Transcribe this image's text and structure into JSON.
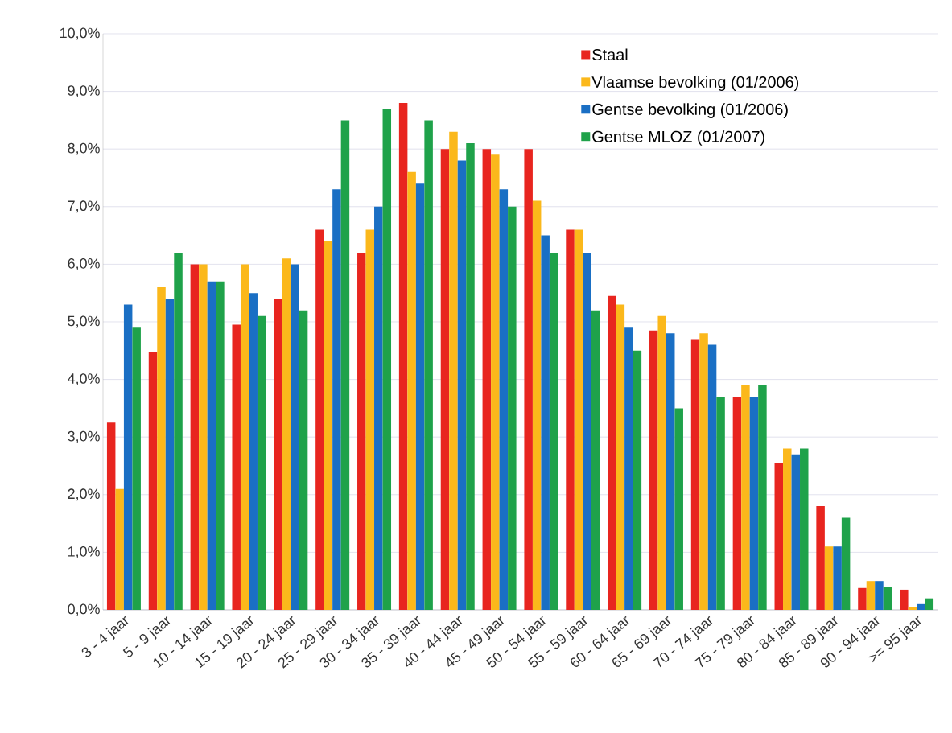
{
  "chart_data": {
    "type": "bar",
    "categories": [
      "3 - 4 jaar",
      "5 - 9 jaar",
      "10 - 14 jaar",
      "15 - 19 jaar",
      "20 - 24 jaar",
      "25 - 29 jaar",
      "30 - 34 jaar",
      "35 - 39 jaar",
      "40 - 44 jaar",
      "45 - 49 jaar",
      "50 - 54 jaar",
      "55 - 59 jaar",
      "60 - 64 jaar",
      "65 - 69 jaar",
      "70 - 74 jaar",
      "75 - 79 jaar",
      "80 - 84 jaar",
      "85 - 89 jaar",
      "90 - 94 jaar",
      ">= 95 jaar"
    ],
    "series": [
      {
        "name": "Staal",
        "color": "#e8251f",
        "values": [
          3.25,
          4.48,
          6.0,
          4.95,
          5.4,
          6.6,
          6.2,
          8.8,
          8.0,
          8.0,
          8.0,
          6.6,
          5.45,
          4.85,
          4.7,
          3.7,
          2.55,
          1.8,
          0.38,
          0.35
        ]
      },
      {
        "name": "Vlaamse bevolking (01/2006)",
        "color": "#fbb81b",
        "values": [
          2.1,
          5.6,
          6.0,
          6.0,
          6.1,
          6.4,
          6.6,
          7.6,
          8.3,
          7.9,
          7.1,
          6.6,
          5.3,
          5.1,
          4.8,
          3.9,
          2.8,
          1.1,
          0.5,
          0.05
        ]
      },
      {
        "name": "Gentse bevolking (01/2006)",
        "color": "#1a6fc4",
        "values": [
          5.3,
          5.4,
          5.7,
          5.5,
          6.0,
          7.3,
          7.0,
          7.4,
          7.8,
          7.3,
          6.5,
          6.2,
          4.9,
          4.8,
          4.6,
          3.7,
          2.7,
          1.1,
          0.5,
          0.1
        ]
      },
      {
        "name": "Gentse MLOZ (01/2007)",
        "color": "#1fa24a",
        "values": [
          4.9,
          6.2,
          5.7,
          5.1,
          5.2,
          8.5,
          8.7,
          8.5,
          8.1,
          7.0,
          6.2,
          5.2,
          4.5,
          3.5,
          3.7,
          3.9,
          2.8,
          1.6,
          0.4,
          0.2
        ]
      }
    ],
    "ylim": [
      0,
      10
    ],
    "yticks": [
      {
        "value": 0,
        "label": "0,0%"
      },
      {
        "value": 1,
        "label": "1,0%"
      },
      {
        "value": 2,
        "label": "2,0%"
      },
      {
        "value": 3,
        "label": "3,0%"
      },
      {
        "value": 4,
        "label": "4,0%"
      },
      {
        "value": 5,
        "label": "5,0%"
      },
      {
        "value": 6,
        "label": "6,0%"
      },
      {
        "value": 7,
        "label": "7,0%"
      },
      {
        "value": 8,
        "label": "8,0%"
      },
      {
        "value": 9,
        "label": "9,0%"
      },
      {
        "value": 10,
        "label": "10,0%"
      }
    ],
    "grid": "y",
    "legend": "top right"
  }
}
